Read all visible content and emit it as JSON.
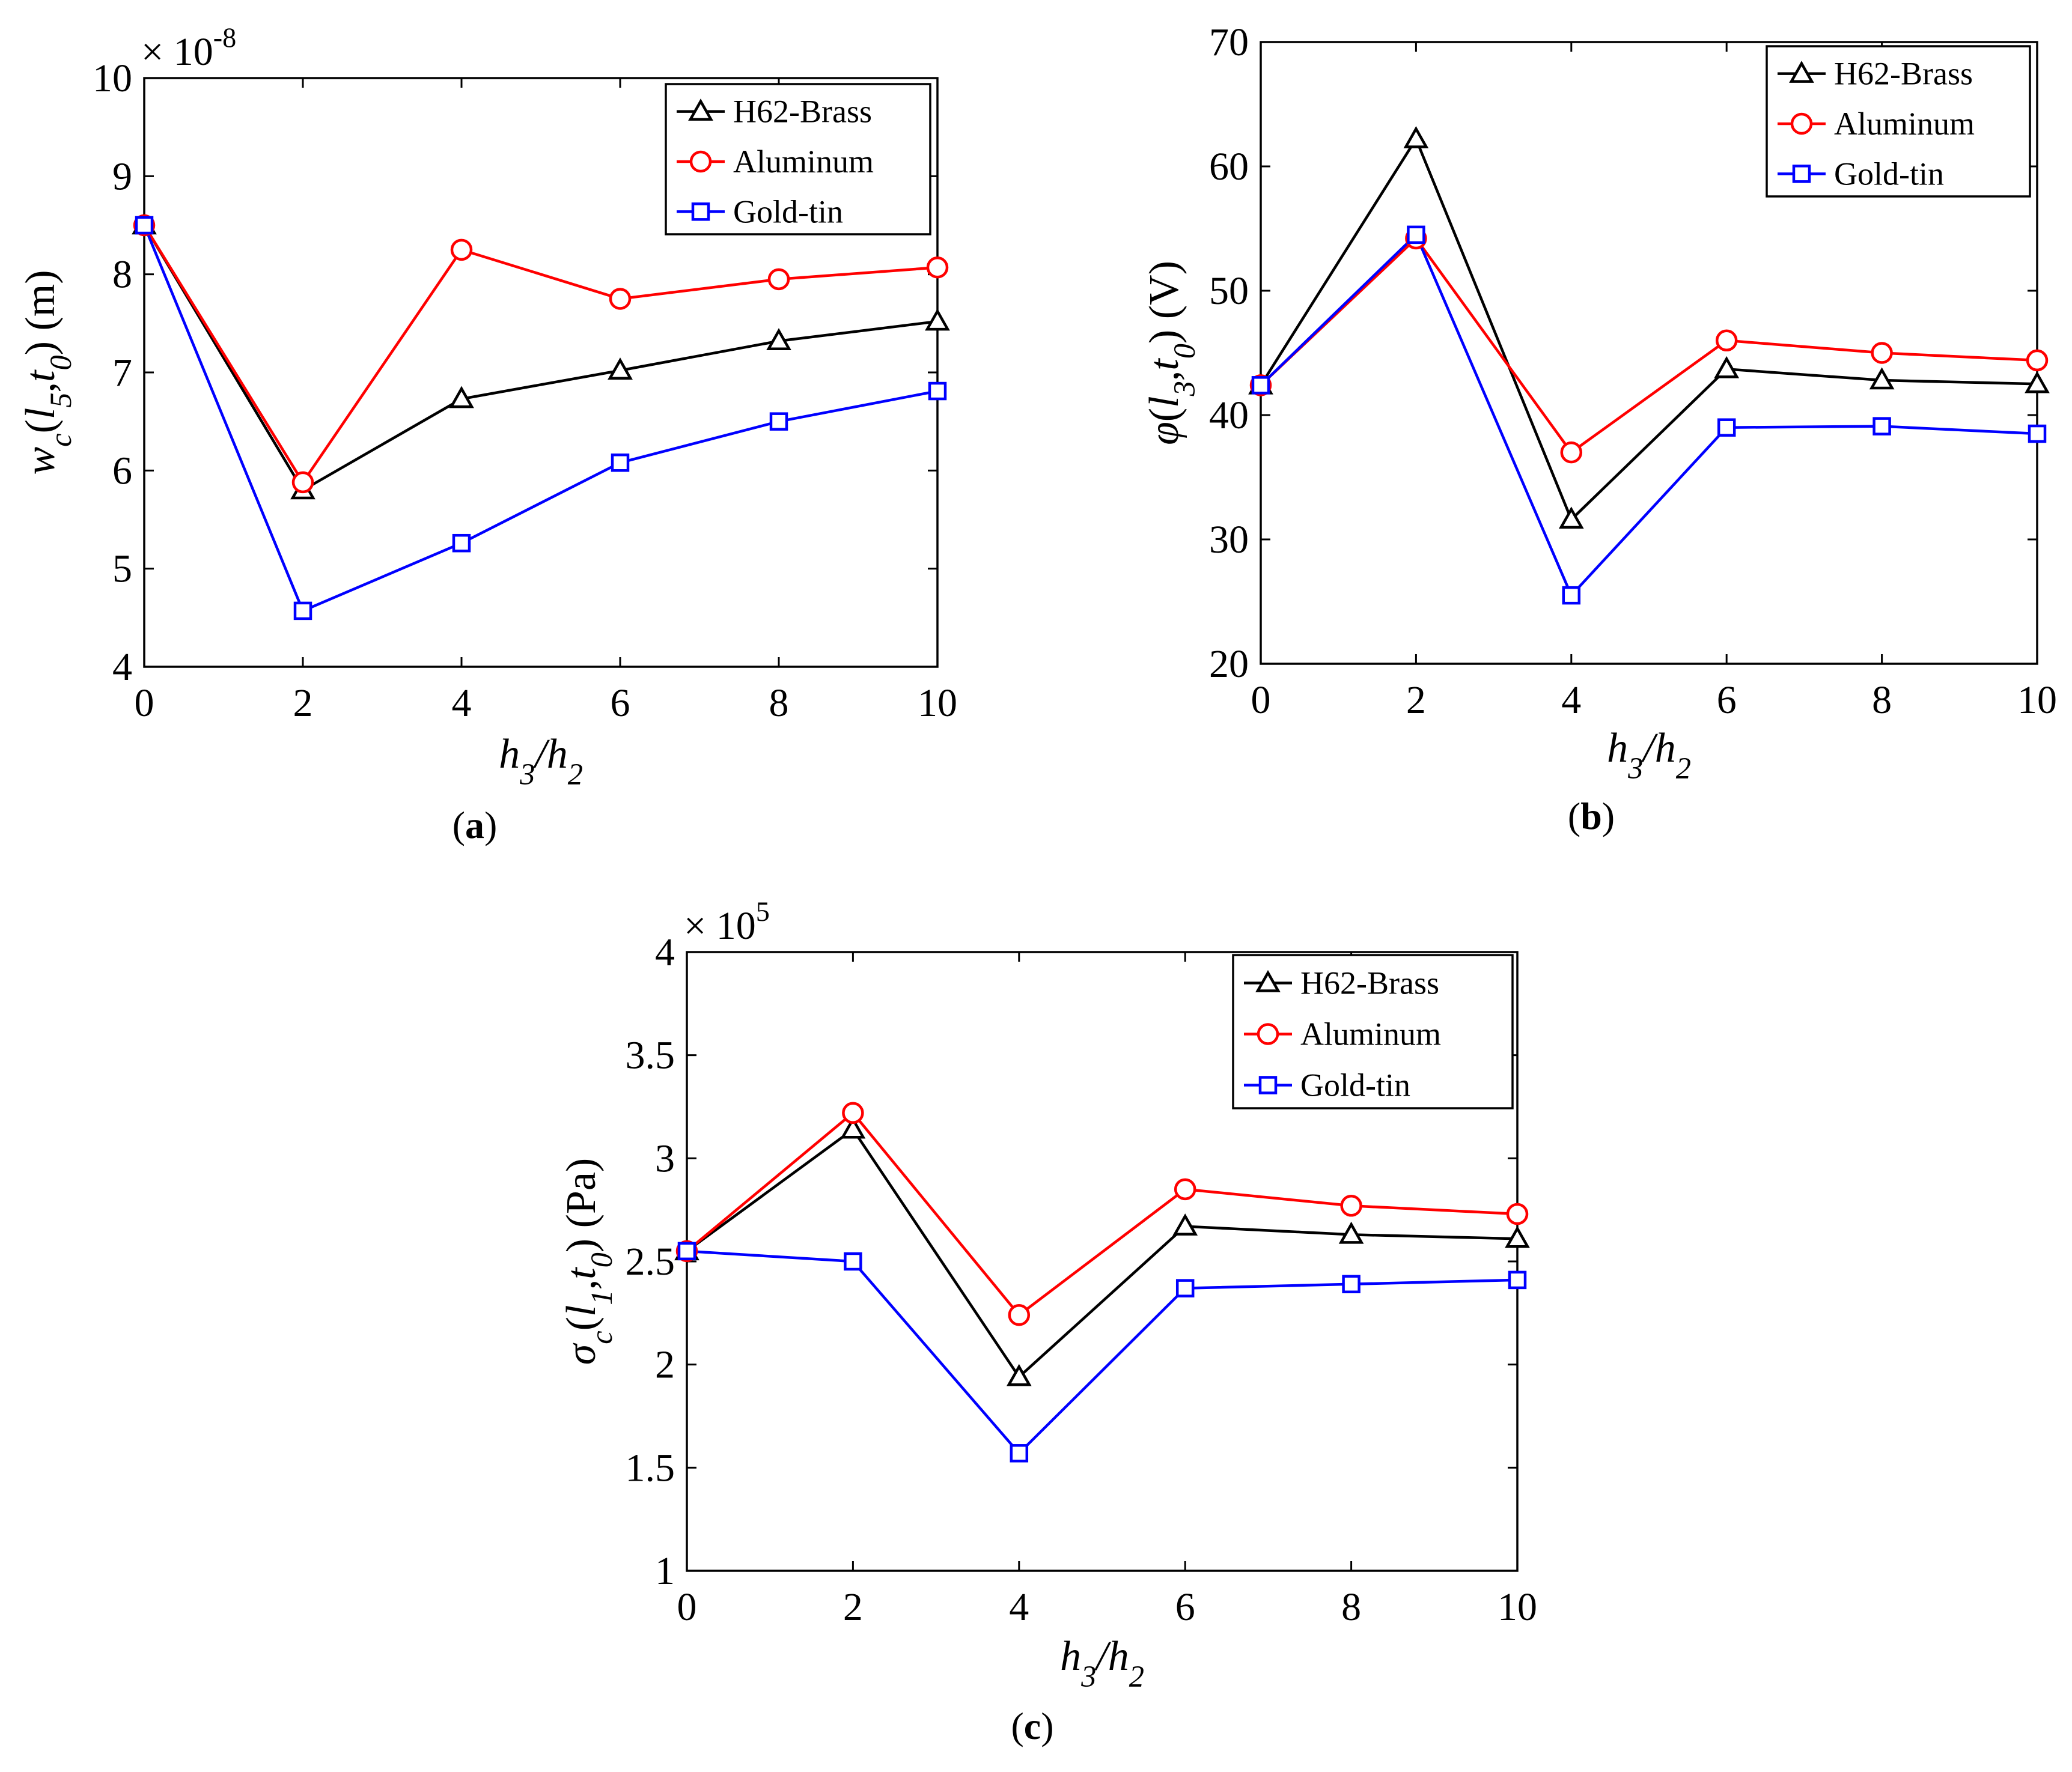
{
  "figure": {
    "chart_data": [
      {
        "type": "line",
        "panel": "a",
        "caption_label": "a",
        "xlabel": "h3/h2",
        "ylabel": "wc(l5,t0) (m)",
        "y_multiplier": "× 10",
        "y_multiplier_exp": "-8",
        "x": [
          0,
          2,
          4,
          6,
          8,
          10
        ],
        "xlim": [
          0,
          10
        ],
        "ylim": [
          4,
          10
        ],
        "xticks": [
          0,
          2,
          4,
          6,
          8,
          10
        ],
        "yticks": [
          4,
          5,
          6,
          7,
          8,
          9,
          10
        ],
        "legend_position": "top-right",
        "series": [
          {
            "name": "H62-Brass",
            "color": "#000000",
            "marker": "triangle",
            "values": [
              8.5,
              5.8,
              6.73,
              7.02,
              7.32,
              7.52
            ]
          },
          {
            "name": "Aluminum",
            "color": "#ff0000",
            "marker": "circle",
            "values": [
              8.5,
              5.88,
              8.25,
              7.75,
              7.95,
              8.07
            ]
          },
          {
            "name": "Gold-tin",
            "color": "#0000ff",
            "marker": "square",
            "values": [
              8.5,
              4.57,
              5.26,
              6.08,
              6.5,
              6.81
            ]
          }
        ]
      },
      {
        "type": "line",
        "panel": "b",
        "caption_label": "b",
        "xlabel": "h3/h2",
        "ylabel": "φ(l3,t0) (V)",
        "x": [
          0,
          2,
          4,
          6,
          8,
          10
        ],
        "xlim": [
          0,
          10
        ],
        "ylim": [
          20,
          70
        ],
        "xticks": [
          0,
          2,
          4,
          6,
          8,
          10
        ],
        "yticks": [
          20,
          30,
          40,
          50,
          60,
          70
        ],
        "legend_position": "top-right",
        "series": [
          {
            "name": "H62-Brass",
            "color": "#000000",
            "marker": "triangle",
            "values": [
              42.4,
              62.2,
              31.6,
              43.7,
              42.8,
              42.5
            ]
          },
          {
            "name": "Aluminum",
            "color": "#ff0000",
            "marker": "circle",
            "values": [
              42.4,
              54.2,
              37.0,
              46.0,
              45.0,
              44.4
            ]
          },
          {
            "name": "Gold-tin",
            "color": "#0000ff",
            "marker": "square",
            "values": [
              42.4,
              54.5,
              25.5,
              39.0,
              39.1,
              38.5
            ]
          }
        ]
      },
      {
        "type": "line",
        "panel": "c",
        "caption_label": "c",
        "xlabel": "h3/h2",
        "ylabel": "σc(l1,t0) (Pa)",
        "y_multiplier": "× 10",
        "y_multiplier_exp": "5",
        "x": [
          0,
          2,
          4,
          6,
          8,
          10
        ],
        "xlim": [
          0,
          10
        ],
        "ylim": [
          1,
          4
        ],
        "xticks": [
          0,
          2,
          4,
          6,
          8,
          10
        ],
        "yticks": [
          1,
          1.5,
          2,
          2.5,
          3,
          3.5,
          4
        ],
        "legend_position": "top-right",
        "series": [
          {
            "name": "H62-Brass",
            "color": "#000000",
            "marker": "triangle",
            "values": [
              2.55,
              3.14,
              1.94,
              2.67,
              2.63,
              2.61
            ]
          },
          {
            "name": "Aluminum",
            "color": "#ff0000",
            "marker": "circle",
            "values": [
              2.55,
              3.22,
              2.24,
              2.85,
              2.77,
              2.73
            ]
          },
          {
            "name": "Gold-tin",
            "color": "#0000ff",
            "marker": "square",
            "values": [
              2.55,
              2.5,
              1.57,
              2.37,
              2.39,
              2.41
            ]
          }
        ]
      }
    ]
  }
}
